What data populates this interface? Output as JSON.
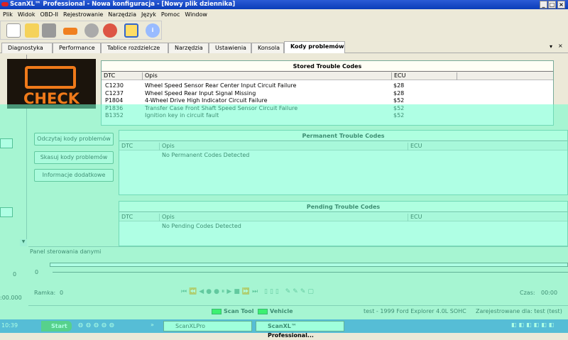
{
  "window": {
    "title": "ScanXL™ Professional - Nowa konfiguracja - [Nowy plik dziennika]",
    "controls": [
      "_",
      "□",
      "×"
    ]
  },
  "menu": [
    "Plik",
    "Widok",
    "OBD-II",
    "Rejestrowanie",
    "Narzędzia",
    "Język",
    "Pomoc",
    "Window"
  ],
  "toolbar": {
    "icons": [
      "new-file-icon",
      "open-folder-icon",
      "save-icon",
      "car-icon",
      "connector-icon",
      "disconnect-icon",
      "fit-icon",
      "info-icon"
    ]
  },
  "tabs": [
    {
      "label": "Diagnostyka"
    },
    {
      "label": "Performance"
    },
    {
      "label": "Tablice rozdzielcze"
    },
    {
      "label": "Narzędzia"
    },
    {
      "label": "Ustawienia"
    },
    {
      "label": "Konsola"
    },
    {
      "label": "Kody problemów",
      "active": true
    }
  ],
  "tabs_controls": {
    "pin": "▾",
    "close": "×"
  },
  "check_image": {
    "text": "CHECK",
    "color": "#f07a1a"
  },
  "buttons": {
    "read": "Odczytaj kody problemów",
    "clear": "Skasuj kody problemów",
    "info": "Informacje dodatkowe"
  },
  "stored": {
    "title": "Stored Trouble Codes",
    "columns": [
      "DTC",
      "Opis",
      "ECU"
    ],
    "rows": [
      {
        "dtc": "C1230",
        "opis": "Wheel Speed Sensor Rear Center Input Circuit Failure",
        "ecu": "$28"
      },
      {
        "dtc": "C1237",
        "opis": "Wheel Speed Rear Input Signal Missing",
        "ecu": "$28"
      },
      {
        "dtc": "P1804",
        "opis": "4-Wheel Drive High Indicator Circuit Failure",
        "ecu": "$52"
      },
      {
        "dtc": "P1836",
        "opis": "Transfer Case Front Shaft Speed Sensor Circuit Failure",
        "ecu": "$52"
      },
      {
        "dtc": "B1352",
        "opis": "Ignition key in circuit fault",
        "ecu": "$52"
      }
    ]
  },
  "permanent": {
    "title": "Permanent Trouble Codes",
    "columns": [
      "DTC",
      "Opis",
      "ECU"
    ],
    "empty": "No Permanent Codes Detected"
  },
  "pending": {
    "title": "Pending Trouble Codes",
    "columns": [
      "DTC",
      "Opis",
      "ECU"
    ],
    "empty": "No Pending Codes Detected"
  },
  "data_panel": {
    "title": "Panel sterowania danymi",
    "slider_value": "0",
    "frame_label": "Ramka:",
    "frame_value": "0",
    "time_label": "Czas:",
    "time_value": "00:00",
    "left_value": "0",
    "left_time": ":00.000"
  },
  "statusbar": {
    "scan_tool": "Scan Tool",
    "vehicle": "Vehicle",
    "vehicle_info": "test - 1999 Ford Explorer 4.0L SOHC",
    "registered": "Zarejestrowane dla: test (test)"
  },
  "taskbar": {
    "start": "Start",
    "tasks": [
      "ScanXLPro",
      "ScanXL™ Professional..."
    ],
    "clock": "10:39",
    "quick_more": "»"
  }
}
